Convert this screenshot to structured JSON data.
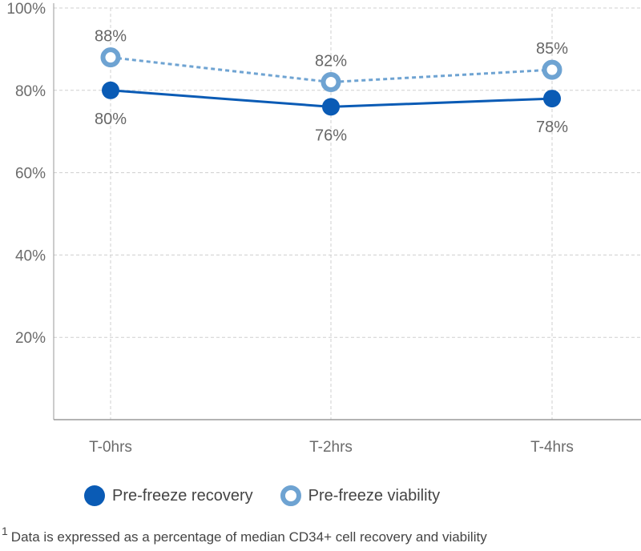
{
  "chart_data": {
    "type": "line",
    "categories": [
      "T-0hrs",
      "T-2hrs",
      "T-4hrs"
    ],
    "y_ticks": [
      "20%",
      "40%",
      "60%",
      "80%",
      "100%"
    ],
    "y_tick_values": [
      20,
      40,
      60,
      80,
      100
    ],
    "ylim": [
      0,
      100
    ],
    "grid": true,
    "series": [
      {
        "name": "Pre-freeze recovery",
        "values": [
          80,
          76,
          78
        ],
        "labels": [
          "80%",
          "76%",
          "78%"
        ],
        "color": "#0a5bb5",
        "style": "solid"
      },
      {
        "name": "Pre-freeze viability",
        "values": [
          88,
          82,
          85
        ],
        "labels": [
          "88%",
          "82%",
          "85%"
        ],
        "color": "#6ea3d2",
        "style": "dashed"
      }
    ],
    "legend_position": "bottom-left"
  },
  "footnote": {
    "marker": "1",
    "text": "Data is expressed as a percentage of median CD34+ cell recovery and viability"
  }
}
